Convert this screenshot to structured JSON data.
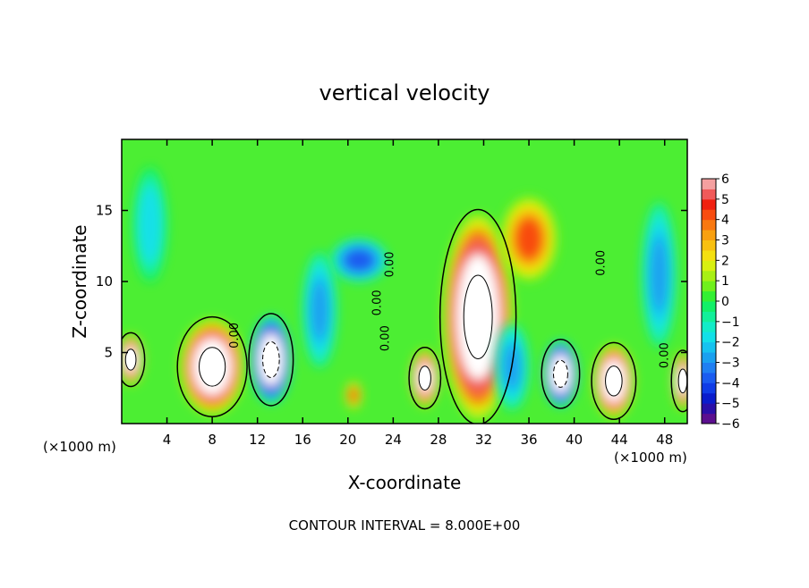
{
  "chart_data": {
    "type": "heatmap",
    "title": "vertical velocity",
    "xlabel": "X-coordinate",
    "ylabel": "Z-coordinate",
    "x_unit_label_left": "(×1000 m)",
    "x_unit_label_right": "(×1000 m)",
    "xlim": [
      0,
      50
    ],
    "ylim": [
      0,
      20
    ],
    "x_ticks": [
      4,
      8,
      12,
      16,
      20,
      24,
      28,
      32,
      36,
      40,
      44,
      48
    ],
    "y_ticks": [
      5,
      10,
      15
    ],
    "footer": "CONTOUR INTERVAL = 8.000E+00",
    "contour_labels": [
      "0.00",
      "0.00",
      "0.00",
      "0.00",
      "0.00",
      "0.00"
    ],
    "colorbar": {
      "ticks": [
        "6",
        "5",
        "4",
        "3",
        "2",
        "1",
        "0",
        "−1",
        "−2",
        "−3",
        "−4",
        "−5",
        "−6"
      ],
      "levels": [
        {
          "from": -6,
          "to": -5.5,
          "color": "#5b0f8f"
        },
        {
          "from": -5.5,
          "to": -5,
          "color": "#2a0fa8"
        },
        {
          "from": -5,
          "to": -4.5,
          "color": "#0a1ccc"
        },
        {
          "from": -4.5,
          "to": -4,
          "color": "#0f3ce6"
        },
        {
          "from": -4,
          "to": -3.5,
          "color": "#1a5cf0"
        },
        {
          "from": -3.5,
          "to": -3,
          "color": "#1f7ff2"
        },
        {
          "from": -3,
          "to": -2.5,
          "color": "#1aa0f0"
        },
        {
          "from": -2.5,
          "to": -2,
          "color": "#16c2f0"
        },
        {
          "from": -2,
          "to": -1.5,
          "color": "#12e0e8"
        },
        {
          "from": -1.5,
          "to": -1,
          "color": "#12ecc8"
        },
        {
          "from": -1,
          "to": -0.5,
          "color": "#12f09a"
        },
        {
          "from": -0.5,
          "to": 0,
          "color": "#12f068"
        },
        {
          "from": 0,
          "to": 0.5,
          "color": "#33f033"
        },
        {
          "from": 0.5,
          "to": 1,
          "color": "#70f01c"
        },
        {
          "from": 1,
          "to": 1.5,
          "color": "#a8f014"
        },
        {
          "from": 1.5,
          "to": 2,
          "color": "#d8f010"
        },
        {
          "from": 2,
          "to": 2.5,
          "color": "#f4e010"
        },
        {
          "from": 2.5,
          "to": 3,
          "color": "#f8c010"
        },
        {
          "from": 3,
          "to": 3.5,
          "color": "#f8a010"
        },
        {
          "from": 3.5,
          "to": 4,
          "color": "#f87810"
        },
        {
          "from": 4,
          "to": 4.5,
          "color": "#f84c10"
        },
        {
          "from": 4.5,
          "to": 5,
          "color": "#f02010"
        },
        {
          "from": 5,
          "to": 5.5,
          "color": "#f05a5a"
        },
        {
          "from": 5.5,
          "to": 6,
          "color": "#f4a0a0"
        }
      ]
    },
    "features": [
      {
        "kind": "updraft",
        "x": 31.5,
        "z": 7.5,
        "w": 6,
        "h": 14,
        "peak": 9
      },
      {
        "kind": "updraft",
        "x": 8,
        "z": 4,
        "w": 5.5,
        "h": 6.5,
        "peak": 8
      },
      {
        "kind": "updraft",
        "x": 43.5,
        "z": 3,
        "w": 3.5,
        "h": 5,
        "peak": 8
      },
      {
        "kind": "updraft",
        "x": 26.8,
        "z": 3.2,
        "w": 2.5,
        "h": 4,
        "peak": 7
      },
      {
        "kind": "updraft",
        "x": 0.8,
        "z": 4.5,
        "w": 2.2,
        "h": 3.5,
        "peak": 7
      },
      {
        "kind": "updraft",
        "x": 49.6,
        "z": 3,
        "w": 1.8,
        "h": 4,
        "peak": 7
      },
      {
        "kind": "updraft",
        "x": 20.5,
        "z": 2,
        "w": 1.5,
        "h": 2,
        "peak": 4
      },
      {
        "kind": "updraft",
        "x": 36,
        "z": 13,
        "w": 5,
        "h": 6,
        "peak": 4
      },
      {
        "kind": "downdraft",
        "x": 13.2,
        "z": 4.5,
        "w": 3.5,
        "h": 6,
        "peak": -8
      },
      {
        "kind": "downdraft",
        "x": 38.8,
        "z": 3.5,
        "w": 3,
        "h": 4.5,
        "peak": -8
      },
      {
        "kind": "downdraft",
        "x": 21,
        "z": 11.5,
        "w": 5,
        "h": 3,
        "peak": -4
      },
      {
        "kind": "downdraft",
        "x": 17.5,
        "z": 8,
        "w": 3,
        "h": 8,
        "peak": -3
      },
      {
        "kind": "downdraft",
        "x": 2.5,
        "z": 14,
        "w": 3,
        "h": 8,
        "peak": -2
      },
      {
        "kind": "downdraft",
        "x": 47.5,
        "z": 10.5,
        "w": 3,
        "h": 10,
        "peak": -3
      },
      {
        "kind": "downdraft",
        "x": 34.5,
        "z": 4,
        "w": 3,
        "h": 6,
        "peak": -3
      }
    ]
  }
}
